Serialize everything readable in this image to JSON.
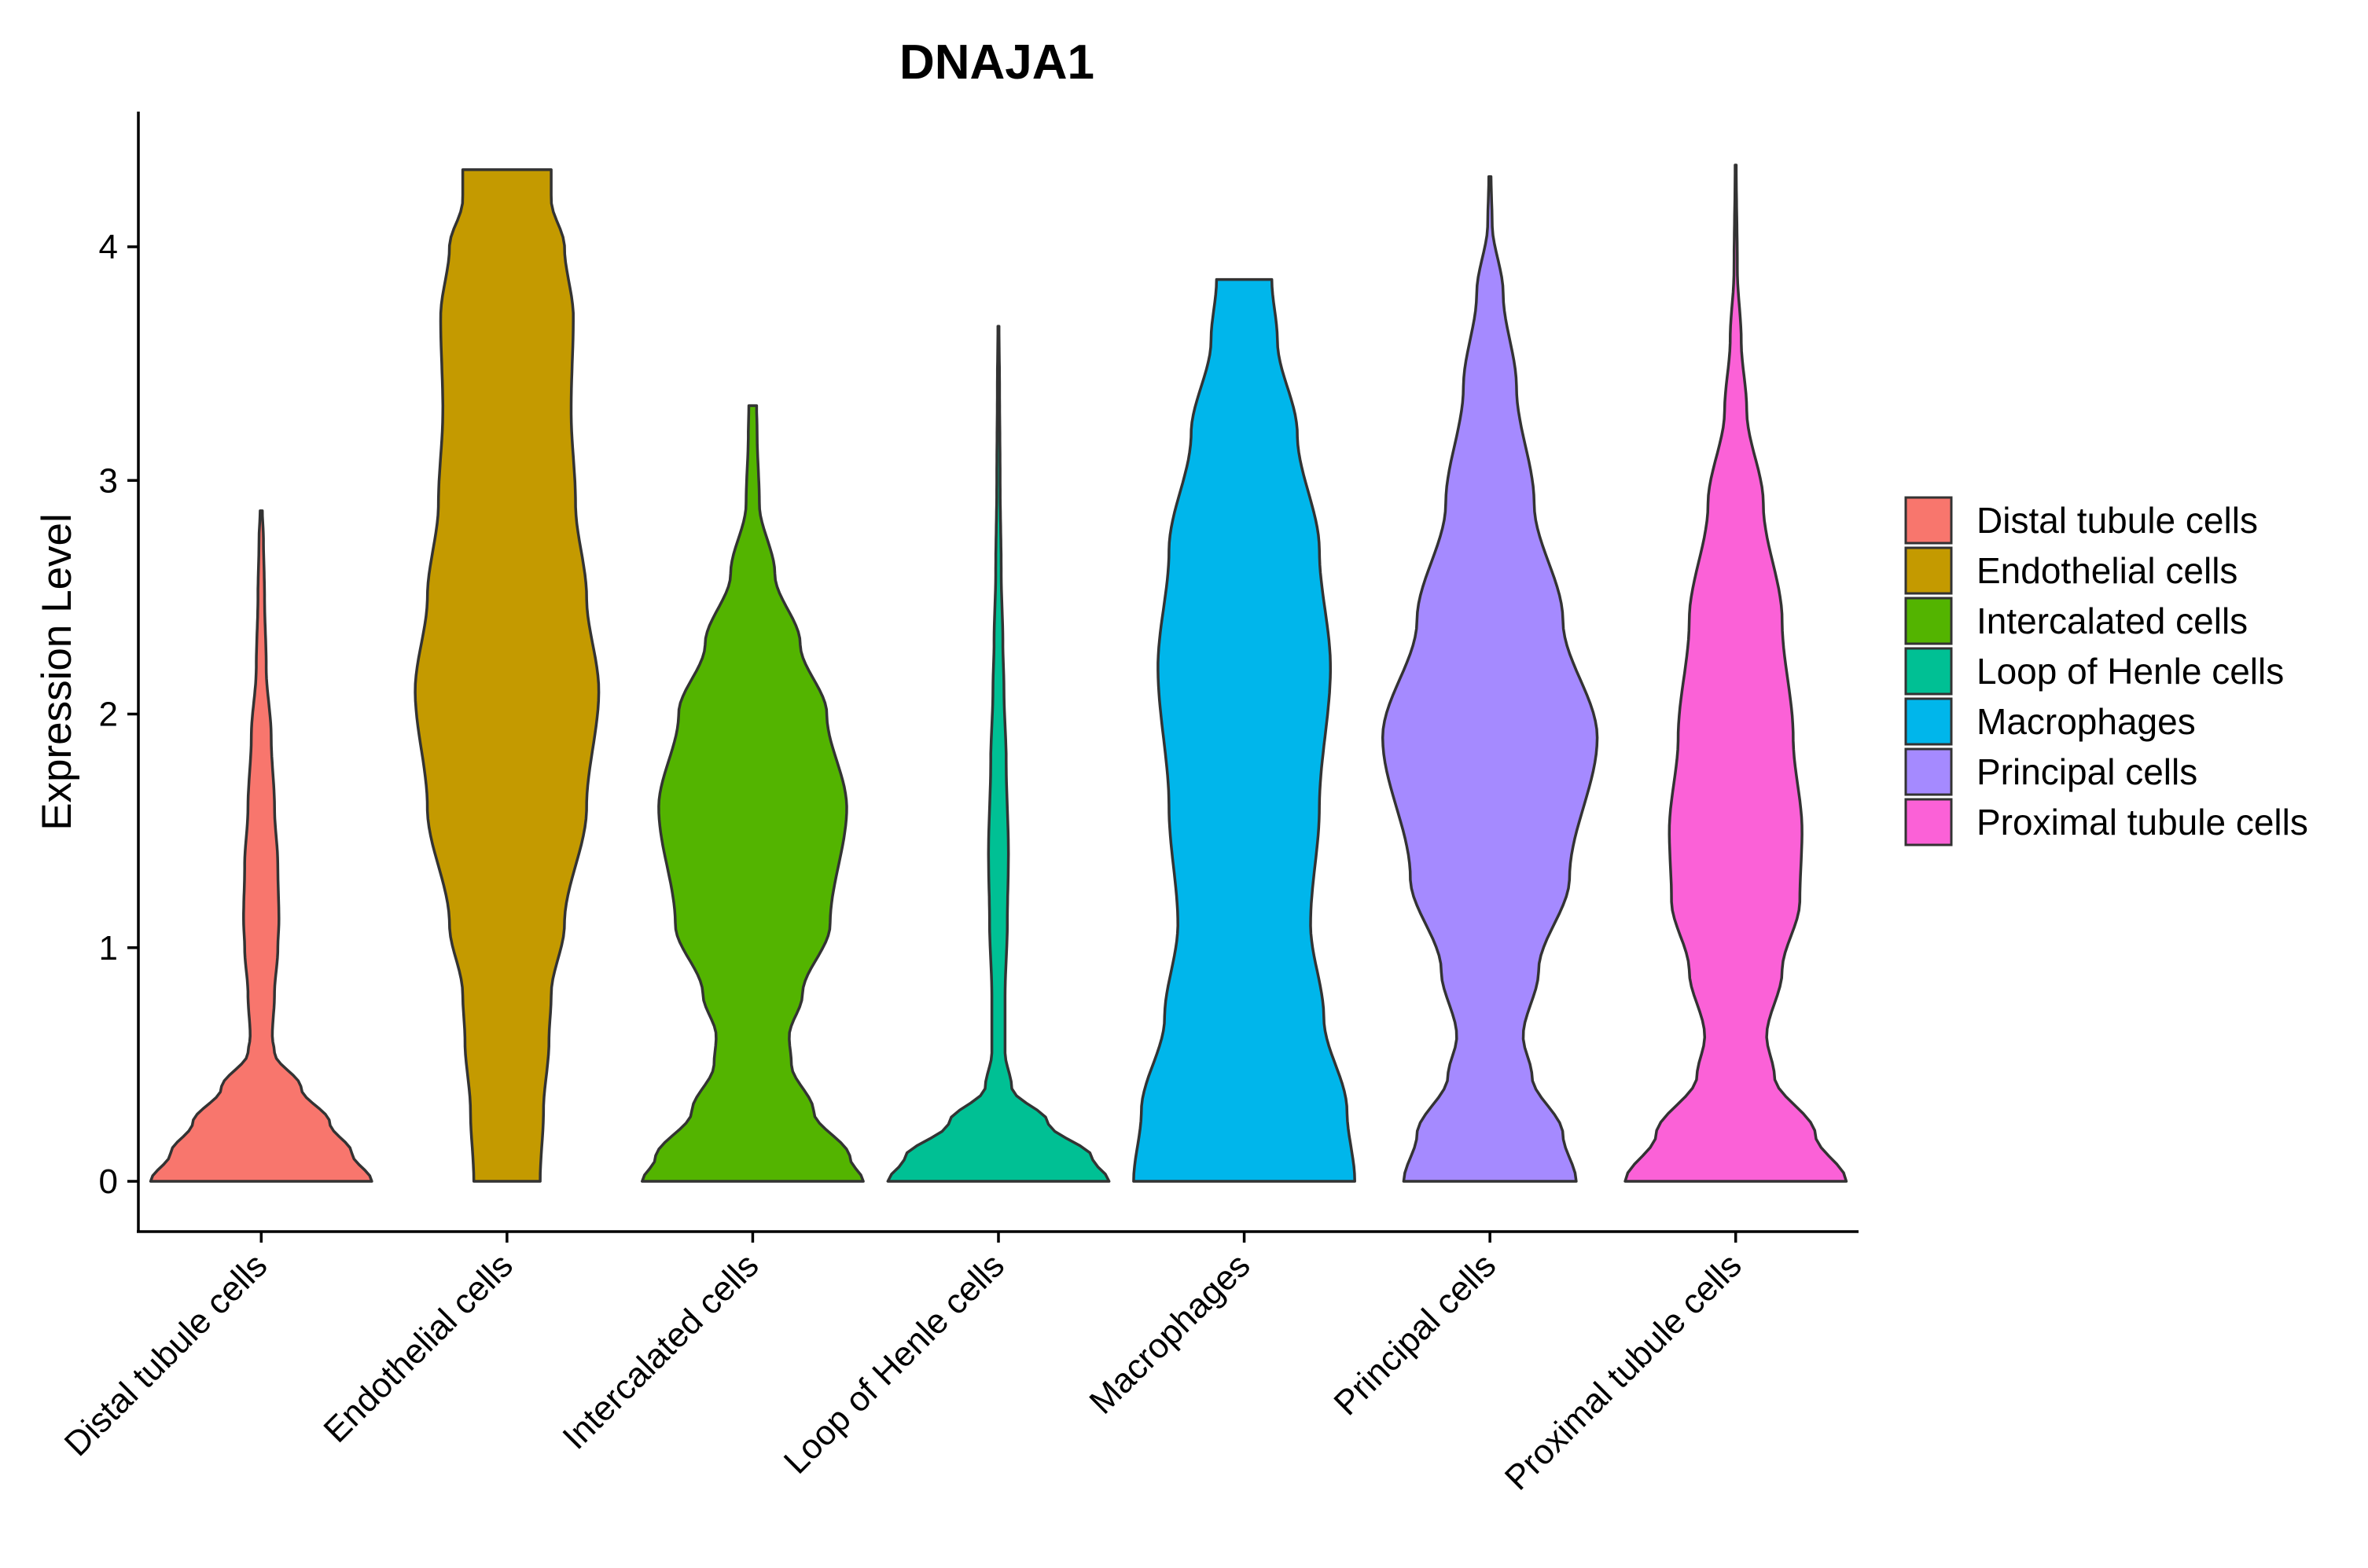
{
  "chart_data": {
    "type": "violin",
    "title": "DNAJA1",
    "xlabel": "",
    "ylabel": "Expression Level",
    "ylim": [
      -0.21,
      4.58
    ],
    "yticks": [
      0,
      1,
      2,
      3,
      4
    ],
    "grid": false,
    "legend_position": "right",
    "categories": [
      "Distal tubule cells",
      "Endothelial cells",
      "Intercalated cells",
      "Loop of Henle cells",
      "Macrophages",
      "Principal cells",
      "Proximal tubule cells"
    ],
    "colors": [
      "#F8766D",
      "#C49A00",
      "#53B400",
      "#00C094",
      "#00B6EB",
      "#A58AFF",
      "#FB61D7"
    ],
    "series": [
      {
        "name": "Distal tubule cells",
        "max": 2.87,
        "density": [
          [
            0,
            1
          ],
          [
            0.12,
            0.82
          ],
          [
            0.25,
            0.62
          ],
          [
            0.4,
            0.36
          ],
          [
            0.55,
            0.12
          ],
          [
            0.62,
            0.1
          ],
          [
            0.8,
            0.12
          ],
          [
            1.0,
            0.15
          ],
          [
            1.12,
            0.16
          ],
          [
            1.35,
            0.15
          ],
          [
            1.6,
            0.12
          ],
          [
            1.9,
            0.09
          ],
          [
            2.2,
            0.045
          ],
          [
            2.5,
            0.03
          ],
          [
            2.75,
            0.02
          ],
          [
            2.87,
            0.01
          ]
        ]
      },
      {
        "name": "Endothelial cells",
        "max": 4.33,
        "density": [
          [
            0,
            0.3
          ],
          [
            0.3,
            0.33
          ],
          [
            0.6,
            0.38
          ],
          [
            0.8,
            0.4
          ],
          [
            1.1,
            0.52
          ],
          [
            1.6,
            0.72
          ],
          [
            2.1,
            0.83
          ],
          [
            2.5,
            0.72
          ],
          [
            2.9,
            0.62
          ],
          [
            3.3,
            0.58
          ],
          [
            3.7,
            0.6
          ],
          [
            4.0,
            0.52
          ],
          [
            4.2,
            0.4
          ],
          [
            4.33,
            0.4
          ]
        ]
      },
      {
        "name": "Intercalated cells",
        "max": 3.32,
        "density": [
          [
            0,
            1
          ],
          [
            0.1,
            0.88
          ],
          [
            0.3,
            0.55
          ],
          [
            0.5,
            0.35
          ],
          [
            0.62,
            0.33
          ],
          [
            0.8,
            0.45
          ],
          [
            1.1,
            0.7
          ],
          [
            1.6,
            0.85
          ],
          [
            2.0,
            0.67
          ],
          [
            2.3,
            0.43
          ],
          [
            2.6,
            0.2
          ],
          [
            2.9,
            0.06
          ],
          [
            3.2,
            0.04
          ],
          [
            3.32,
            0.035
          ]
        ]
      },
      {
        "name": "Loop of Henle cells",
        "max": 3.66,
        "density": [
          [
            0,
            1
          ],
          [
            0.1,
            0.85
          ],
          [
            0.25,
            0.45
          ],
          [
            0.4,
            0.12
          ],
          [
            0.55,
            0.06
          ],
          [
            0.8,
            0.06
          ],
          [
            1.1,
            0.08
          ],
          [
            1.4,
            0.09
          ],
          [
            1.8,
            0.07
          ],
          [
            2.1,
            0.05
          ],
          [
            2.3,
            0.04
          ],
          [
            2.6,
            0.025
          ],
          [
            3.0,
            0.015
          ],
          [
            3.4,
            0.01
          ],
          [
            3.66,
            0.005
          ]
        ]
      },
      {
        "name": "Macrophages",
        "max": 3.86,
        "density": [
          [
            0,
            1
          ],
          [
            0.3,
            0.93
          ],
          [
            0.7,
            0.72
          ],
          [
            1.1,
            0.6
          ],
          [
            1.6,
            0.68
          ],
          [
            2.2,
            0.78
          ],
          [
            2.7,
            0.68
          ],
          [
            3.2,
            0.48
          ],
          [
            3.6,
            0.3
          ],
          [
            3.86,
            0.25
          ]
        ]
      },
      {
        "name": "Principal cells",
        "max": 4.3,
        "density": [
          [
            0,
            0.78
          ],
          [
            0.2,
            0.66
          ],
          [
            0.45,
            0.38
          ],
          [
            0.62,
            0.3
          ],
          [
            0.9,
            0.44
          ],
          [
            1.3,
            0.72
          ],
          [
            1.9,
            0.97
          ],
          [
            2.4,
            0.66
          ],
          [
            2.9,
            0.4
          ],
          [
            3.4,
            0.24
          ],
          [
            3.8,
            0.12
          ],
          [
            4.1,
            0.02
          ],
          [
            4.3,
            0.01
          ]
        ]
      },
      {
        "name": "Proximal tubule cells",
        "max": 4.35,
        "density": [
          [
            0,
            1
          ],
          [
            0.2,
            0.72
          ],
          [
            0.45,
            0.35
          ],
          [
            0.62,
            0.28
          ],
          [
            0.9,
            0.42
          ],
          [
            1.2,
            0.58
          ],
          [
            1.5,
            0.6
          ],
          [
            1.9,
            0.52
          ],
          [
            2.4,
            0.42
          ],
          [
            2.9,
            0.25
          ],
          [
            3.3,
            0.1
          ],
          [
            3.6,
            0.05
          ],
          [
            3.9,
            0.015
          ],
          [
            4.35,
            0.005
          ]
        ]
      }
    ]
  }
}
